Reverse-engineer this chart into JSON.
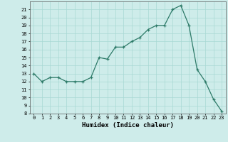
{
  "x": [
    0,
    1,
    2,
    3,
    4,
    5,
    6,
    7,
    8,
    9,
    10,
    11,
    12,
    13,
    14,
    15,
    16,
    17,
    18,
    19,
    20,
    21,
    22,
    23
  ],
  "y": [
    13.0,
    12.0,
    12.5,
    12.5,
    12.0,
    12.0,
    12.0,
    12.5,
    15.0,
    14.8,
    16.3,
    16.3,
    17.0,
    17.5,
    18.5,
    19.0,
    19.0,
    21.0,
    21.5,
    19.0,
    13.5,
    12.0,
    9.8,
    8.3
  ],
  "xlabel": "Humidex (Indice chaleur)",
  "xlim": [
    -0.5,
    23.5
  ],
  "ylim": [
    8,
    22
  ],
  "yticks": [
    8,
    9,
    10,
    11,
    12,
    13,
    14,
    15,
    16,
    17,
    18,
    19,
    20,
    21
  ],
  "xticks": [
    0,
    1,
    2,
    3,
    4,
    5,
    6,
    7,
    8,
    9,
    10,
    11,
    12,
    13,
    14,
    15,
    16,
    17,
    18,
    19,
    20,
    21,
    22,
    23
  ],
  "line_color": "#2d7a68",
  "bg_color": "#ceecea",
  "grid_color": "#a8d8d4"
}
